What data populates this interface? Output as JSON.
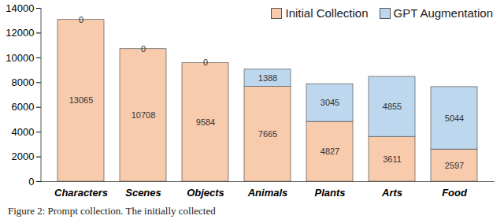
{
  "chart_data": {
    "type": "bar",
    "stacked": true,
    "data_labels": true,
    "grid": false,
    "legend": "top-right",
    "categories": [
      "Characters",
      "Scenes",
      "Objects",
      "Animals",
      "Plants",
      "Arts",
      "Food"
    ],
    "series": [
      {
        "name": "Initial Collection",
        "color": "#f8cbad",
        "values": [
          13065,
          10708,
          9584,
          7665,
          4827,
          3611,
          2597
        ]
      },
      {
        "name": "GPT Augmentation",
        "color": "#bdd7ee",
        "values": [
          0,
          0,
          0,
          1388,
          3045,
          4855,
          5044
        ]
      }
    ],
    "ylim": [
      0,
      14000
    ],
    "yticks": [
      0,
      2000,
      4000,
      6000,
      8000,
      10000,
      12000,
      14000
    ],
    "caption": "Figure 2: Prompt collection. The initially collected"
  }
}
